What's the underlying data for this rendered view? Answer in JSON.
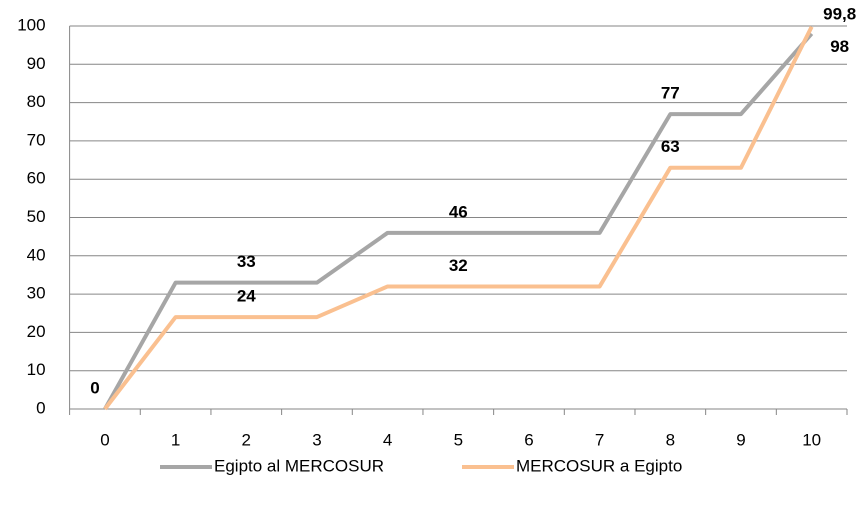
{
  "chart_data": {
    "type": "line",
    "categories": [
      "0",
      "1",
      "2",
      "3",
      "4",
      "5",
      "6",
      "7",
      "8",
      "9",
      "10"
    ],
    "series": [
      {
        "name": "Egipto al MERCOSUR",
        "color": "#a6a6a6",
        "label_color": "#8c8c8c",
        "values": [
          0,
          33,
          33,
          33,
          46,
          46,
          46,
          46,
          77,
          77,
          98
        ],
        "value_labels": [
          null,
          null,
          "33",
          null,
          null,
          "46",
          null,
          null,
          "77",
          null,
          "98"
        ]
      },
      {
        "name": "MERCOSUR a Egipto",
        "color": "#fac090",
        "label_color": "#e46c0a",
        "values": [
          0,
          24,
          24,
          24,
          32,
          32,
          32,
          32,
          63,
          63,
          99.8
        ],
        "value_labels": [
          "0",
          null,
          "24",
          null,
          null,
          "32",
          null,
          null,
          "63",
          null,
          "99,8"
        ]
      }
    ],
    "ylim": [
      0,
      100
    ],
    "yticks": [
      0,
      10,
      20,
      30,
      40,
      50,
      60,
      70,
      80,
      90,
      100
    ],
    "grid": true,
    "legend": "bottom"
  }
}
